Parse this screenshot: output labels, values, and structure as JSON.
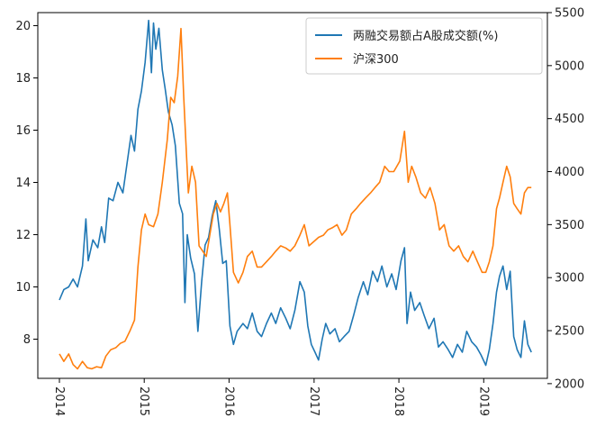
{
  "chart_data": {
    "type": "line",
    "title": "",
    "xlabel": "",
    "ylabel_left": "",
    "ylabel_right": "",
    "x_range": [
      "2014-01-01",
      "2019-08-01"
    ],
    "x_ticks": [
      "2014-01-01",
      "2015-01-01",
      "2016-01-01",
      "2017-01-01",
      "2018-01-01",
      "2019-01-01"
    ],
    "x_tick_labels": [
      "2014",
      "2015",
      "2016",
      "2017",
      "2018",
      "2019"
    ],
    "y_left_range": [
      6.5,
      20.5
    ],
    "y_left_ticks": [
      8,
      10,
      12,
      14,
      16,
      18,
      20
    ],
    "y_right_range": [
      2050,
      5500
    ],
    "y_right_ticks": [
      2000,
      2500,
      3000,
      3500,
      4000,
      4500,
      5000,
      5500
    ],
    "grid": false,
    "legend_position": "top-right",
    "series": [
      {
        "name": "两融交易额占A股成交额(%)",
        "axis": "left",
        "color": "#1f77b4",
        "points": [
          [
            "2014-01-01",
            9.5
          ],
          [
            "2014-01-20",
            9.9
          ],
          [
            "2014-02-10",
            10.0
          ],
          [
            "2014-03-01",
            10.3
          ],
          [
            "2014-03-20",
            10.0
          ],
          [
            "2014-04-10",
            10.8
          ],
          [
            "2014-04-25",
            12.6
          ],
          [
            "2014-05-05",
            11.0
          ],
          [
            "2014-05-25",
            11.8
          ],
          [
            "2014-06-15",
            11.5
          ],
          [
            "2014-07-01",
            12.3
          ],
          [
            "2014-07-15",
            11.7
          ],
          [
            "2014-08-01",
            13.4
          ],
          [
            "2014-08-20",
            13.3
          ],
          [
            "2014-09-10",
            14.0
          ],
          [
            "2014-10-01",
            13.6
          ],
          [
            "2014-10-20",
            14.8
          ],
          [
            "2014-11-05",
            15.8
          ],
          [
            "2014-11-20",
            15.2
          ],
          [
            "2014-12-05",
            16.8
          ],
          [
            "2014-12-20",
            17.5
          ],
          [
            "2015-01-05",
            18.6
          ],
          [
            "2015-01-20",
            20.2
          ],
          [
            "2015-02-01",
            18.2
          ],
          [
            "2015-02-10",
            20.1
          ],
          [
            "2015-02-20",
            19.1
          ],
          [
            "2015-03-05",
            19.9
          ],
          [
            "2015-03-20",
            18.3
          ],
          [
            "2015-04-01",
            17.6
          ],
          [
            "2015-04-15",
            16.7
          ],
          [
            "2015-05-01",
            16.2
          ],
          [
            "2015-05-15",
            15.4
          ],
          [
            "2015-06-01",
            13.2
          ],
          [
            "2015-06-15",
            12.8
          ],
          [
            "2015-06-25",
            9.4
          ],
          [
            "2015-07-05",
            12.0
          ],
          [
            "2015-07-20",
            11.1
          ],
          [
            "2015-08-05",
            10.5
          ],
          [
            "2015-08-20",
            8.3
          ],
          [
            "2015-09-05",
            10.2
          ],
          [
            "2015-09-20",
            11.6
          ],
          [
            "2015-10-05",
            11.9
          ],
          [
            "2015-10-20",
            12.7
          ],
          [
            "2015-11-05",
            13.3
          ],
          [
            "2015-11-20",
            12.2
          ],
          [
            "2015-12-05",
            10.9
          ],
          [
            "2015-12-20",
            11.0
          ],
          [
            "2016-01-05",
            8.5
          ],
          [
            "2016-01-20",
            7.8
          ],
          [
            "2016-02-05",
            8.3
          ],
          [
            "2016-03-01",
            8.6
          ],
          [
            "2016-03-20",
            8.4
          ],
          [
            "2016-04-10",
            9.0
          ],
          [
            "2016-05-01",
            8.3
          ],
          [
            "2016-05-20",
            8.1
          ],
          [
            "2016-06-10",
            8.6
          ],
          [
            "2016-07-01",
            9.0
          ],
          [
            "2016-07-20",
            8.6
          ],
          [
            "2016-08-10",
            9.2
          ],
          [
            "2016-09-01",
            8.8
          ],
          [
            "2016-09-20",
            8.4
          ],
          [
            "2016-10-10",
            9.1
          ],
          [
            "2016-11-01",
            10.2
          ],
          [
            "2016-11-20",
            9.8
          ],
          [
            "2016-12-05",
            8.5
          ],
          [
            "2016-12-20",
            7.8
          ],
          [
            "2017-01-05",
            7.5
          ],
          [
            "2017-01-20",
            7.2
          ],
          [
            "2017-02-05",
            8.0
          ],
          [
            "2017-02-20",
            8.6
          ],
          [
            "2017-03-10",
            8.2
          ],
          [
            "2017-04-01",
            8.4
          ],
          [
            "2017-04-20",
            7.9
          ],
          [
            "2017-05-10",
            8.1
          ],
          [
            "2017-06-01",
            8.3
          ],
          [
            "2017-06-20",
            8.9
          ],
          [
            "2017-07-10",
            9.6
          ],
          [
            "2017-08-01",
            10.2
          ],
          [
            "2017-08-20",
            9.7
          ],
          [
            "2017-09-10",
            10.6
          ],
          [
            "2017-10-01",
            10.2
          ],
          [
            "2017-10-20",
            10.8
          ],
          [
            "2017-11-10",
            10.0
          ],
          [
            "2017-12-01",
            10.5
          ],
          [
            "2017-12-20",
            9.9
          ],
          [
            "2018-01-10",
            11.0
          ],
          [
            "2018-01-25",
            11.5
          ],
          [
            "2018-02-05",
            8.6
          ],
          [
            "2018-02-20",
            9.8
          ],
          [
            "2018-03-10",
            9.1
          ],
          [
            "2018-04-01",
            9.4
          ],
          [
            "2018-04-20",
            8.9
          ],
          [
            "2018-05-10",
            8.4
          ],
          [
            "2018-06-01",
            8.8
          ],
          [
            "2018-06-20",
            7.7
          ],
          [
            "2018-07-10",
            7.9
          ],
          [
            "2018-08-01",
            7.6
          ],
          [
            "2018-08-20",
            7.3
          ],
          [
            "2018-09-10",
            7.8
          ],
          [
            "2018-10-01",
            7.5
          ],
          [
            "2018-10-20",
            8.3
          ],
          [
            "2018-11-10",
            7.9
          ],
          [
            "2018-12-01",
            7.7
          ],
          [
            "2018-12-20",
            7.4
          ],
          [
            "2019-01-10",
            7.0
          ],
          [
            "2019-01-25",
            7.6
          ],
          [
            "2019-02-10",
            8.6
          ],
          [
            "2019-02-25",
            9.8
          ],
          [
            "2019-03-10",
            10.4
          ],
          [
            "2019-03-25",
            10.8
          ],
          [
            "2019-04-10",
            9.9
          ],
          [
            "2019-04-25",
            10.6
          ],
          [
            "2019-05-10",
            8.1
          ],
          [
            "2019-05-25",
            7.6
          ],
          [
            "2019-06-10",
            7.3
          ],
          [
            "2019-06-25",
            8.7
          ],
          [
            "2019-07-10",
            7.8
          ],
          [
            "2019-07-25",
            7.5
          ]
        ]
      },
      {
        "name": "沪深300",
        "axis": "right",
        "color": "#ff7f0e",
        "points": [
          [
            "2014-01-01",
            2280
          ],
          [
            "2014-01-20",
            2210
          ],
          [
            "2014-02-10",
            2280
          ],
          [
            "2014-03-01",
            2180
          ],
          [
            "2014-03-20",
            2140
          ],
          [
            "2014-04-10",
            2210
          ],
          [
            "2014-05-01",
            2150
          ],
          [
            "2014-05-20",
            2140
          ],
          [
            "2014-06-10",
            2160
          ],
          [
            "2014-07-01",
            2150
          ],
          [
            "2014-07-20",
            2260
          ],
          [
            "2014-08-10",
            2320
          ],
          [
            "2014-09-01",
            2340
          ],
          [
            "2014-09-20",
            2380
          ],
          [
            "2014-10-10",
            2400
          ],
          [
            "2014-11-01",
            2500
          ],
          [
            "2014-11-20",
            2600
          ],
          [
            "2014-12-05",
            3100
          ],
          [
            "2014-12-20",
            3450
          ],
          [
            "2015-01-05",
            3600
          ],
          [
            "2015-01-20",
            3500
          ],
          [
            "2015-02-10",
            3480
          ],
          [
            "2015-03-01",
            3600
          ],
          [
            "2015-03-20",
            3900
          ],
          [
            "2015-04-10",
            4300
          ],
          [
            "2015-04-25",
            4700
          ],
          [
            "2015-05-10",
            4650
          ],
          [
            "2015-05-25",
            4900
          ],
          [
            "2015-06-08",
            5350
          ],
          [
            "2015-06-20",
            4700
          ],
          [
            "2015-07-01",
            4200
          ],
          [
            "2015-07-10",
            3800
          ],
          [
            "2015-07-25",
            4050
          ],
          [
            "2015-08-10",
            3900
          ],
          [
            "2015-08-25",
            3300
          ],
          [
            "2015-09-10",
            3250
          ],
          [
            "2015-09-25",
            3200
          ],
          [
            "2015-10-10",
            3400
          ],
          [
            "2015-10-25",
            3600
          ],
          [
            "2015-11-10",
            3700
          ],
          [
            "2015-11-25",
            3620
          ],
          [
            "2015-12-10",
            3700
          ],
          [
            "2015-12-25",
            3800
          ],
          [
            "2016-01-05",
            3500
          ],
          [
            "2016-01-20",
            3050
          ],
          [
            "2016-02-10",
            2950
          ],
          [
            "2016-03-01",
            3050
          ],
          [
            "2016-03-20",
            3200
          ],
          [
            "2016-04-10",
            3250
          ],
          [
            "2016-05-01",
            3100
          ],
          [
            "2016-05-20",
            3100
          ],
          [
            "2016-06-10",
            3150
          ],
          [
            "2016-07-01",
            3200
          ],
          [
            "2016-07-20",
            3250
          ],
          [
            "2016-08-10",
            3300
          ],
          [
            "2016-09-01",
            3280
          ],
          [
            "2016-09-20",
            3250
          ],
          [
            "2016-10-10",
            3300
          ],
          [
            "2016-11-01",
            3400
          ],
          [
            "2016-11-20",
            3500
          ],
          [
            "2016-12-10",
            3300
          ],
          [
            "2017-01-05",
            3350
          ],
          [
            "2017-01-20",
            3380
          ],
          [
            "2017-02-10",
            3400
          ],
          [
            "2017-03-01",
            3450
          ],
          [
            "2017-03-20",
            3470
          ],
          [
            "2017-04-10",
            3500
          ],
          [
            "2017-05-01",
            3400
          ],
          [
            "2017-05-20",
            3450
          ],
          [
            "2017-06-10",
            3600
          ],
          [
            "2017-07-01",
            3650
          ],
          [
            "2017-07-20",
            3700
          ],
          [
            "2017-08-10",
            3750
          ],
          [
            "2017-09-01",
            3800
          ],
          [
            "2017-09-20",
            3850
          ],
          [
            "2017-10-10",
            3900
          ],
          [
            "2017-11-01",
            4050
          ],
          [
            "2017-11-20",
            4000
          ],
          [
            "2017-12-10",
            4000
          ],
          [
            "2018-01-05",
            4100
          ],
          [
            "2018-01-25",
            4380
          ],
          [
            "2018-02-10",
            3900
          ],
          [
            "2018-02-25",
            4050
          ],
          [
            "2018-03-15",
            3950
          ],
          [
            "2018-04-05",
            3800
          ],
          [
            "2018-04-25",
            3750
          ],
          [
            "2018-05-15",
            3850
          ],
          [
            "2018-06-05",
            3700
          ],
          [
            "2018-06-25",
            3450
          ],
          [
            "2018-07-15",
            3500
          ],
          [
            "2018-08-05",
            3300
          ],
          [
            "2018-08-25",
            3250
          ],
          [
            "2018-09-15",
            3300
          ],
          [
            "2018-10-05",
            3200
          ],
          [
            "2018-10-25",
            3150
          ],
          [
            "2018-11-15",
            3250
          ],
          [
            "2018-12-05",
            3150
          ],
          [
            "2018-12-25",
            3050
          ],
          [
            "2019-01-10",
            3050
          ],
          [
            "2019-01-25",
            3150
          ],
          [
            "2019-02-10",
            3300
          ],
          [
            "2019-02-25",
            3650
          ],
          [
            "2019-03-10",
            3750
          ],
          [
            "2019-03-25",
            3900
          ],
          [
            "2019-04-10",
            4050
          ],
          [
            "2019-04-25",
            3950
          ],
          [
            "2019-05-10",
            3700
          ],
          [
            "2019-05-25",
            3650
          ],
          [
            "2019-06-10",
            3600
          ],
          [
            "2019-06-25",
            3800
          ],
          [
            "2019-07-10",
            3850
          ],
          [
            "2019-07-25",
            3850
          ]
        ]
      }
    ]
  }
}
